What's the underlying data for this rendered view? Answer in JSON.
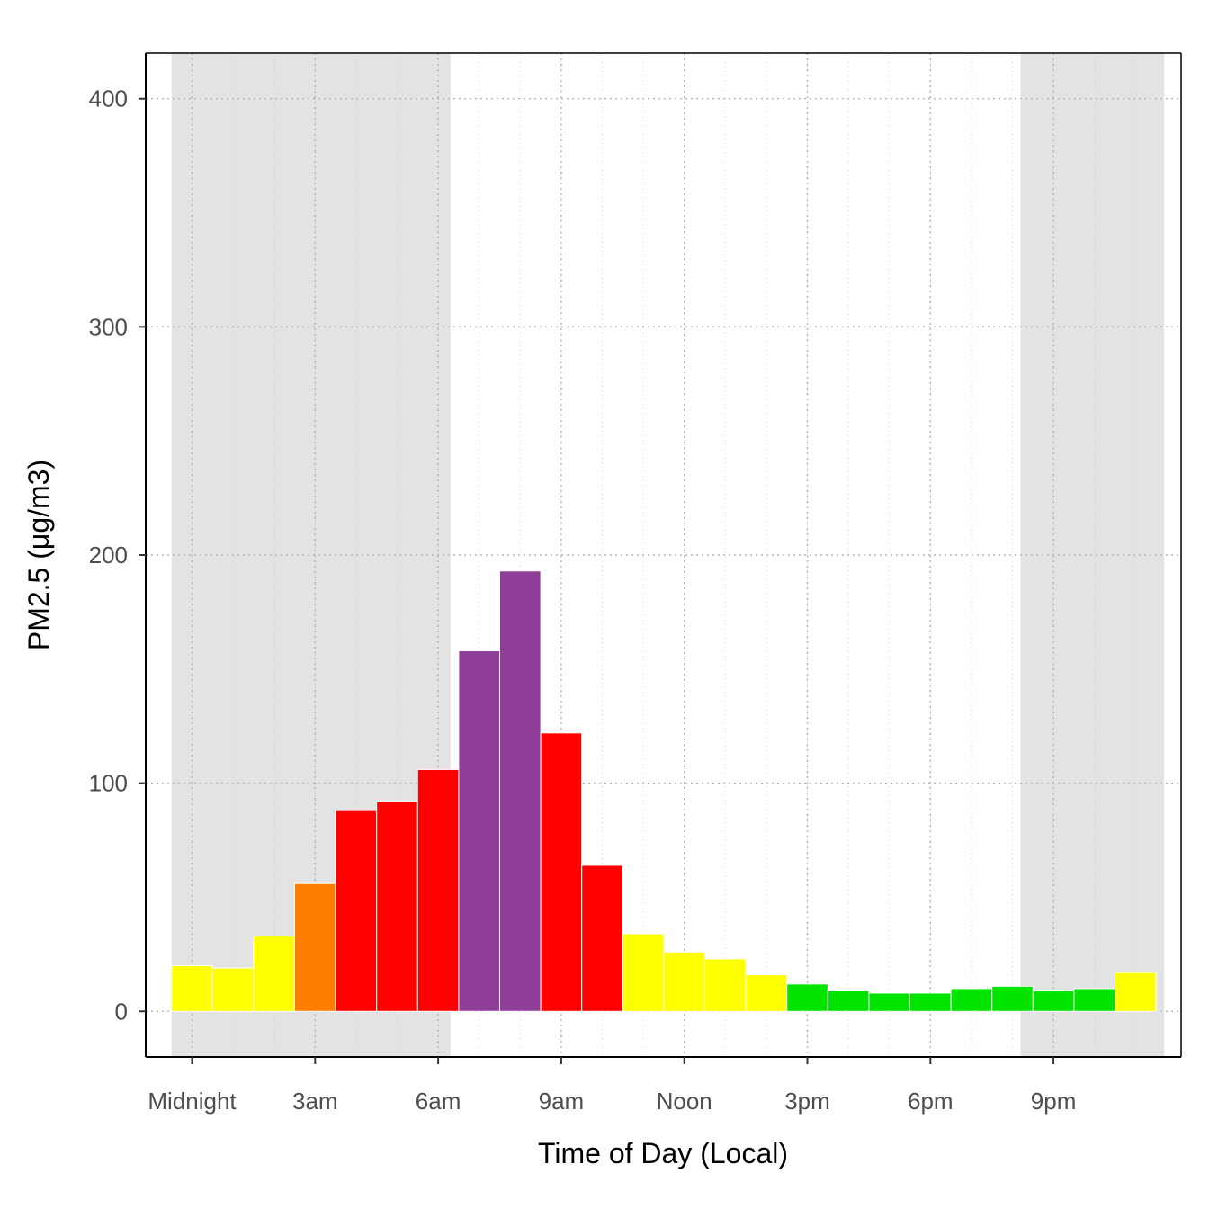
{
  "chart_data": {
    "type": "bar",
    "title": "",
    "xlabel": "Time of Day (Local)",
    "ylabel": "PM2.5 (μg/m3)",
    "ylim": [
      -20,
      420
    ],
    "yticks": [
      0,
      100,
      200,
      300,
      400
    ],
    "x_hours": [
      0,
      1,
      2,
      3,
      4,
      5,
      6,
      7,
      8,
      9,
      10,
      11,
      12,
      13,
      14,
      15,
      16,
      17,
      18,
      19,
      20,
      21,
      22,
      23
    ],
    "xtick_labels": [
      {
        "hour": 0,
        "label": "Midnight"
      },
      {
        "hour": 3,
        "label": "3am"
      },
      {
        "hour": 6,
        "label": "6am"
      },
      {
        "hour": 9,
        "label": "9am"
      },
      {
        "hour": 12,
        "label": "Noon"
      },
      {
        "hour": 15,
        "label": "3pm"
      },
      {
        "hour": 18,
        "label": "6pm"
      },
      {
        "hour": 21,
        "label": "9pm"
      }
    ],
    "values": [
      20,
      19,
      33,
      56,
      88,
      92,
      106,
      158,
      193,
      122,
      64,
      34,
      26,
      23,
      16,
      12,
      9,
      8,
      8,
      10,
      11,
      9,
      10,
      17
    ],
    "bar_colors": [
      "#ffff00",
      "#ffff00",
      "#ffff00",
      "#ff7e00",
      "#ff0000",
      "#ff0000",
      "#ff0000",
      "#8f3f97",
      "#8f3f97",
      "#ff0000",
      "#ff0000",
      "#ffff00",
      "#ffff00",
      "#ffff00",
      "#ffff00",
      "#00e400",
      "#00e400",
      "#00e400",
      "#00e400",
      "#00e400",
      "#00e400",
      "#00e400",
      "#00e400",
      "#ffff00"
    ],
    "night_shading": [
      {
        "from_hour": -0.5,
        "to_hour": 6.3
      },
      {
        "from_hour": 20.2,
        "to_hour": 23.7
      }
    ],
    "night_color": "#e3e3e3",
    "grid": true,
    "legend": "none"
  }
}
